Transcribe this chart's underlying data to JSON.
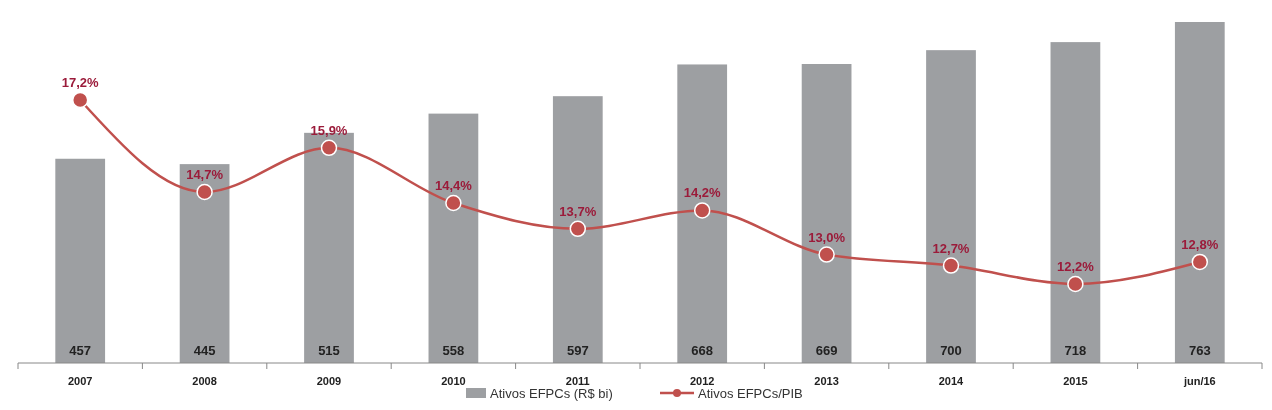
{
  "chart_data": {
    "type": "bar",
    "categories": [
      "2007",
      "2008",
      "2009",
      "2010",
      "2011",
      "2012",
      "2013",
      "2014",
      "2015",
      "jun/16"
    ],
    "series": [
      {
        "name": "Ativos EFPCs (R$ bi)",
        "color": "#9d9fa2",
        "values": [
          457,
          445,
          515,
          558,
          597,
          668,
          669,
          700,
          718,
          763
        ],
        "value_labels": [
          "457",
          "445",
          "515",
          "558",
          "597",
          "668",
          "669",
          "700",
          "718",
          "763"
        ]
      },
      {
        "name": "Ativos EFPCs/PIB",
        "type": "line",
        "axis": "y2",
        "color": "#c0504d",
        "values": [
          17.2,
          14.7,
          15.9,
          14.4,
          13.7,
          14.2,
          13.0,
          12.7,
          12.2,
          12.8
        ],
        "value_labels": [
          "17,2%",
          "14,7%",
          "15,9%",
          "14,4%",
          "13,7%",
          "14,2%",
          "13,0%",
          "12,7%",
          "12,2%",
          "12,8%"
        ]
      }
    ],
    "tick_labels": "x",
    "marker": "circle",
    "legend": "bottom"
  }
}
